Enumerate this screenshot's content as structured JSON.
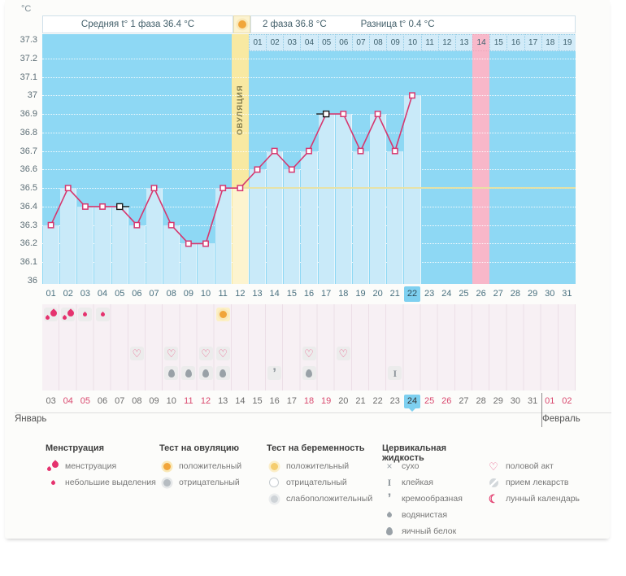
{
  "page": {
    "unit_label": "°C",
    "month_left": "Январь",
    "month_right": "Февраль"
  },
  "header": {
    "phase1_label": "Средняя t° 1 фаза 36.4 °C",
    "phase2_label": "2 фаза 36.8 °C",
    "diff_label": "Разница t° 0.4 °C",
    "ovulation_label": "ОВУЛЯЦИЯ"
  },
  "chart_data": {
    "type": "line",
    "title": "Basal body temperature cycle chart",
    "ylabel": "°C",
    "ylim": [
      36.0,
      37.3
    ],
    "ytick_step": 0.1,
    "yticks": [
      "37.3",
      "37.2",
      "37.1",
      "37",
      "36.9",
      "36.8",
      "36.7",
      "36.6",
      "36.5",
      "36.4",
      "36.3",
      "36.2",
      "36.1",
      "36"
    ],
    "grid": "dotted",
    "coverline": 36.5,
    "categories": [
      "01",
      "02",
      "03",
      "04",
      "05",
      "06",
      "07",
      "08",
      "09",
      "10",
      "11",
      "12",
      "13",
      "14",
      "15",
      "16",
      "17",
      "18",
      "19",
      "20",
      "21",
      "22",
      "23",
      "24",
      "25",
      "26",
      "27",
      "28",
      "29",
      "30",
      "31"
    ],
    "temps": [
      36.3,
      36.5,
      36.4,
      36.4,
      36.4,
      36.3,
      36.5,
      36.3,
      36.2,
      36.2,
      36.5,
      36.5,
      36.6,
      36.7,
      36.6,
      36.7,
      36.9,
      36.9,
      36.7,
      36.9,
      36.7,
      37.0,
      null,
      null,
      null,
      null,
      null,
      null,
      null,
      null,
      null
    ],
    "flags": [
      {
        "day": 5,
        "dir": "right"
      },
      {
        "day": 17,
        "dir": "left"
      }
    ],
    "ovulation_day": 12,
    "highlight_day": 22,
    "phase2_day_labels": [
      "01",
      "02",
      "03",
      "04",
      "05",
      "06",
      "07",
      "08",
      "09",
      "10",
      "11",
      "12",
      "13",
      "14",
      "15",
      "16",
      "17",
      "18",
      "19"
    ],
    "phase2_start_day": 13,
    "phase2_highlight_label": "14",
    "phase2_highlight_day": 26
  },
  "symptoms": {
    "rows": [
      {
        "name": "menstruation-row",
        "cells": [
          {
            "day": 1,
            "icon": "menses-heavy"
          },
          {
            "day": 2,
            "icon": "menses-heavy"
          },
          {
            "day": 3,
            "icon": "menses-light"
          },
          {
            "day": 4,
            "icon": "menses-light"
          },
          {
            "day": 11,
            "icon": "ovulation-test-positive"
          }
        ]
      },
      {
        "name": "pregnancy-test-row",
        "cells": []
      },
      {
        "name": "intercourse-row",
        "cells": [
          {
            "day": 6,
            "icon": "intercourse"
          },
          {
            "day": 8,
            "icon": "intercourse"
          },
          {
            "day": 10,
            "icon": "intercourse"
          },
          {
            "day": 11,
            "icon": "intercourse"
          },
          {
            "day": 16,
            "icon": "intercourse"
          },
          {
            "day": 18,
            "icon": "intercourse"
          }
        ]
      },
      {
        "name": "cervical-fluid-row",
        "cells": [
          {
            "day": 8,
            "icon": "egg-white"
          },
          {
            "day": 9,
            "icon": "egg-white"
          },
          {
            "day": 10,
            "icon": "egg-white"
          },
          {
            "day": 11,
            "icon": "egg-white"
          },
          {
            "day": 14,
            "icon": "creamy"
          },
          {
            "day": 16,
            "icon": "egg-white"
          },
          {
            "day": 21,
            "icon": "sticky"
          }
        ]
      }
    ]
  },
  "dates_row": {
    "values": [
      "03",
      "04",
      "05",
      "06",
      "07",
      "08",
      "09",
      "10",
      "11",
      "12",
      "13",
      "14",
      "15",
      "16",
      "17",
      "18",
      "19",
      "20",
      "21",
      "22",
      "23",
      "24",
      "25",
      "26",
      "27",
      "28",
      "29",
      "30",
      "31",
      "01",
      "02"
    ],
    "red": [
      "04",
      "05",
      "11",
      "12",
      "18",
      "19",
      "25",
      "26",
      "01",
      "02"
    ],
    "highlight": "24",
    "february_start_index": 29
  },
  "legend": {
    "groups": [
      {
        "title": "Менструация",
        "items": [
          {
            "icon": "menses-heavy",
            "label": "менструация"
          },
          {
            "icon": "menses-light",
            "label": "небольшие выделения"
          }
        ]
      },
      {
        "title": "Тест на овуляцию",
        "items": [
          {
            "icon": "ovulation-test-positive",
            "label": "положительный"
          },
          {
            "icon": "test-negative-gray",
            "label": "отрицательный"
          }
        ]
      },
      {
        "title": "Тест на беременность",
        "items": [
          {
            "icon": "pregnancy-test-positive",
            "label": "положительный"
          },
          {
            "icon": "test-negative-white",
            "label": "отрицательный"
          },
          {
            "icon": "test-weak-positive",
            "label": "слабоположительный"
          }
        ]
      },
      {
        "title": "Цервикальная жидкость",
        "items": [
          {
            "icon": "dry",
            "label": "сухо"
          },
          {
            "icon": "sticky",
            "label": "клейкая"
          },
          {
            "icon": "creamy",
            "label": "кремообразная"
          },
          {
            "icon": "watery",
            "label": "водянистая"
          },
          {
            "icon": "egg-white",
            "label": "яичный белок"
          }
        ]
      },
      {
        "title": "",
        "items": [
          {
            "icon": "intercourse",
            "label": "половой акт"
          },
          {
            "icon": "medication",
            "label": "прием лекарств"
          },
          {
            "icon": "moon",
            "label": "лунный календарь"
          }
        ]
      }
    ]
  },
  "colors": {
    "accent_pink": "#d6376f",
    "red_date": "#d9486e",
    "chart_bg": "#8ed8f4",
    "bar": "#c9eaf9",
    "ovulation_yellow": "#f8e9a2",
    "ovulation_bar": "#fdf4cf",
    "pink_column": "#f8b7c9",
    "header_cell_blue": "#d2ebf8",
    "highlight_blue": "#7ed0f0",
    "coverline": "#e9e2a2"
  }
}
